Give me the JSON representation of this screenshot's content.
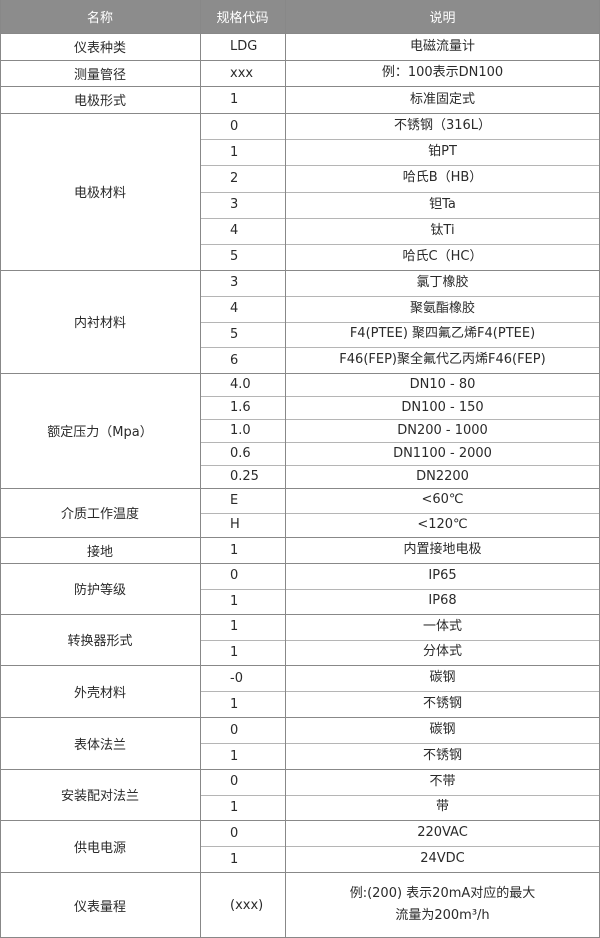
{
  "header": [
    "名称",
    "规格代码",
    "说明"
  ],
  "groups": [
    {
      "name": "仪表种类",
      "items": [
        {
          "code": "LDG",
          "desc": [
            "电磁流量计"
          ]
        }
      ]
    },
    {
      "name": "测量管径",
      "items": [
        {
          "code": "xxx",
          "desc": [
            "例：100表示DN100"
          ]
        }
      ]
    },
    {
      "name": "电极形式",
      "items": [
        {
          "code": "1",
          "desc": [
            "标准固定式"
          ]
        }
      ]
    },
    {
      "name": "电极材料",
      "items": [
        {
          "code": "0",
          "desc": [
            "不锈钢（316L）"
          ]
        },
        {
          "code": "1",
          "desc": [
            "铂PT"
          ]
        },
        {
          "code": "2",
          "desc": [
            "哈氏B（HB）"
          ]
        },
        {
          "code": "3",
          "desc": [
            "钽Ta"
          ]
        },
        {
          "code": "4",
          "desc": [
            "钛Ti"
          ]
        },
        {
          "code": "5",
          "desc": [
            "哈氏C（HC）"
          ]
        }
      ]
    },
    {
      "name": "内衬材料",
      "items": [
        {
          "code": "3",
          "desc": [
            "氯丁橡胶"
          ]
        },
        {
          "code": "4",
          "desc": [
            "聚氨酯橡胶"
          ]
        },
        {
          "code": "5",
          "desc": [
            "F4(PTEE) 聚四氟乙烯F4(PTEE)"
          ]
        },
        {
          "code": "6",
          "desc": [
            "F46(FEP)聚全氟代乙丙烯F46(FEP)"
          ]
        }
      ]
    },
    {
      "name": "额定压力（Mpa）",
      "items": [
        {
          "code": "4.0",
          "desc": [
            "DN10 - 80"
          ]
        },
        {
          "code": "1.6",
          "desc": [
            "DN100 - 150"
          ]
        },
        {
          "code": "1.0",
          "desc": [
            "DN200 - 1000"
          ]
        },
        {
          "code": "0.6",
          "desc": [
            "DN1100 - 2000"
          ]
        },
        {
          "code": "0.25",
          "desc": [
            "DN2200"
          ]
        }
      ]
    },
    {
      "name": "介质工作温度",
      "items": [
        {
          "code": "E",
          "desc": [
            "<60℃"
          ]
        },
        {
          "code": "H",
          "desc": [
            "<120℃"
          ]
        }
      ]
    },
    {
      "name": "接地",
      "items": [
        {
          "code": "1",
          "desc": [
            "内置接地电极"
          ]
        }
      ]
    },
    {
      "name": "防护等级",
      "items": [
        {
          "code": "0",
          "desc": [
            "IP65"
          ]
        },
        {
          "code": "1",
          "desc": [
            "IP68"
          ]
        }
      ]
    },
    {
      "name": "转换器形式",
      "items": [
        {
          "code": "1",
          "desc": [
            "一体式"
          ]
        },
        {
          "code": "1",
          "desc": [
            "分体式"
          ]
        }
      ]
    },
    {
      "name": "外壳材料",
      "items": [
        {
          "code": "-0",
          "desc": [
            "碳钢"
          ]
        },
        {
          "code": "1",
          "desc": [
            "不锈钢"
          ]
        }
      ]
    },
    {
      "name": "表体法兰",
      "items": [
        {
          "code": "0",
          "desc": [
            "碳钢"
          ]
        },
        {
          "code": "1",
          "desc": [
            "不锈钢"
          ]
        }
      ]
    },
    {
      "name": "安装配对法兰",
      "items": [
        {
          "code": "0",
          "desc": [
            "不带"
          ]
        },
        {
          "code": "1",
          "desc": [
            "带"
          ]
        }
      ]
    },
    {
      "name": "供电电源",
      "items": [
        {
          "code": "0",
          "desc": [
            "220VAC"
          ]
        },
        {
          "code": "1",
          "desc": [
            "24VDC"
          ]
        }
      ]
    },
    {
      "name": "仪表量程",
      "items": [
        {
          "code": "(xxx)",
          "desc": [
            "例:(200) 表示20mA对应的最大",
            "流量为200m³/h"
          ]
        }
      ]
    }
  ]
}
